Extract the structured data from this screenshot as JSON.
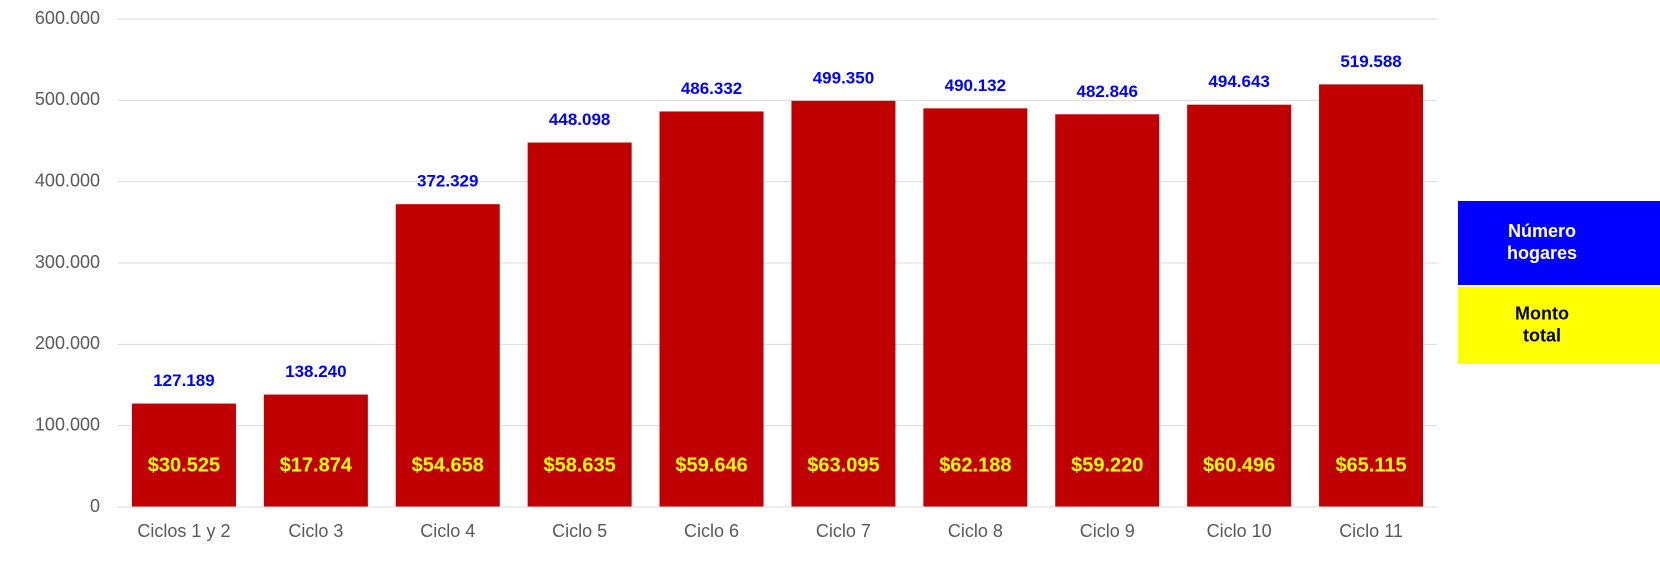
{
  "chart_data": {
    "type": "bar",
    "categories": [
      "Ciclos 1 y 2",
      "Ciclo 3",
      "Ciclo 4",
      "Ciclo 5",
      "Ciclo 6",
      "Ciclo 7",
      "Ciclo 8",
      "Ciclo 9",
      "Ciclo 10",
      "Ciclo 11"
    ],
    "series": [
      {
        "name": "Número hogares",
        "color": "#c00000",
        "label_color": "#0000ff",
        "values": [
          127189,
          138240,
          372329,
          448098,
          486332,
          499350,
          490132,
          482846,
          494643,
          519588
        ],
        "value_labels": [
          "127.189",
          "138.240",
          "372.329",
          "448.098",
          "486.332",
          "499.350",
          "490.132",
          "482.846",
          "494.643",
          "519.588"
        ]
      },
      {
        "name": "Monto total",
        "label_color": "#ffff00",
        "values": [
          30525,
          17874,
          54658,
          58635,
          59646,
          63095,
          62188,
          59220,
          60496,
          65115
        ],
        "value_labels": [
          "$30.525",
          "$17.874",
          "$54.658",
          "$58.635",
          "$59.646",
          "$63.095",
          "$62.188",
          "$59.220",
          "$60.496",
          "$65.115"
        ]
      }
    ],
    "ylim": [
      0,
      600000
    ],
    "yticks": [
      0,
      {
        "value": 100000,
        "label": "100.000"
      },
      {
        "value": 200000,
        "label": "200.000"
      },
      {
        "value": 300000,
        "label": "300.000"
      },
      {
        "value": 400000,
        "label": "400.000"
      },
      {
        "value": 500000,
        "label": "500.000"
      },
      {
        "value": 600000,
        "label": "600.000"
      }
    ],
    "grid": true
  }
}
